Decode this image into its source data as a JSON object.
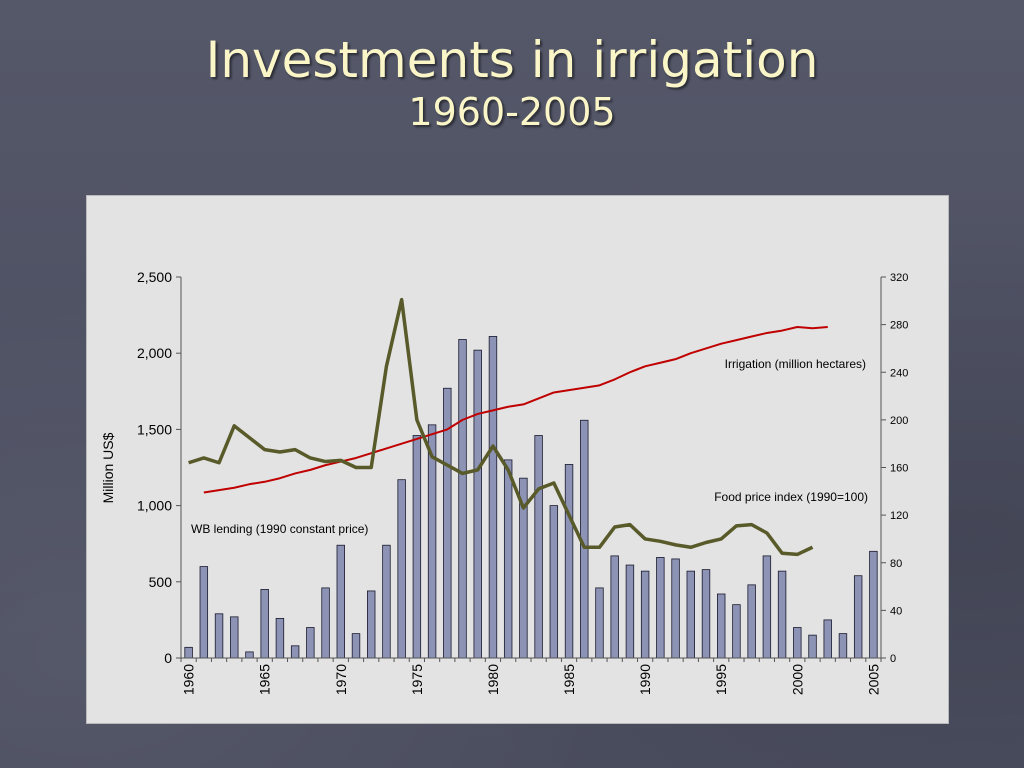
{
  "slide": {
    "title": "Investments in irrigation",
    "subtitle": "1960-2005"
  },
  "chart_data": {
    "type": "bar",
    "title": "Investments in irrigation",
    "subtitle": "1960-2005",
    "ylabel": "Million US$",
    "ylim": [
      0,
      2500
    ],
    "y_ticks": [
      "0",
      "500",
      "1,000",
      "1,500",
      "2,000",
      "2,500"
    ],
    "y2lim": [
      0,
      320
    ],
    "y2_ticks": [
      "0",
      "40",
      "80",
      "120",
      "160",
      "200",
      "240",
      "280",
      "320"
    ],
    "x_tick_labels": [
      "1960",
      "1965",
      "1970",
      "1975",
      "1980",
      "1985",
      "1990",
      "1995",
      "2000",
      "2005"
    ],
    "grid": false,
    "x": [
      1960,
      1961,
      1962,
      1963,
      1964,
      1965,
      1966,
      1967,
      1968,
      1969,
      1970,
      1971,
      1972,
      1973,
      1974,
      1975,
      1976,
      1977,
      1978,
      1979,
      1980,
      1981,
      1982,
      1983,
      1984,
      1985,
      1986,
      1987,
      1988,
      1989,
      1990,
      1991,
      1992,
      1993,
      1994,
      1995,
      1996,
      1997,
      1998,
      1999,
      2000,
      2001,
      2002,
      2003,
      2004,
      2005
    ],
    "series": [
      {
        "name": "WB lending (1990 constant price)",
        "kind": "bar",
        "axis": "left",
        "color": "#8c93b5",
        "values": [
          70,
          600,
          290,
          270,
          40,
          450,
          260,
          80,
          200,
          460,
          740,
          160,
          440,
          740,
          1170,
          1460,
          1530,
          1770,
          2090,
          2020,
          2110,
          1300,
          1180,
          1460,
          1000,
          1270,
          1560,
          460,
          670,
          610,
          570,
          660,
          650,
          570,
          580,
          420,
          350,
          480,
          670,
          570,
          200,
          150,
          250,
          160,
          540,
          700
        ]
      },
      {
        "name": "Irrigation (million hectares)",
        "kind": "line",
        "axis": "right",
        "color": "#c00000",
        "x": [
          1961,
          1962,
          1963,
          1964,
          1965,
          1966,
          1967,
          1968,
          1969,
          1970,
          1971,
          1972,
          1973,
          1974,
          1975,
          1976,
          1977,
          1978,
          1979,
          1980,
          1981,
          1982,
          1983,
          1984,
          1985,
          1986,
          1987,
          1988,
          1989,
          1990,
          1991,
          1992,
          1993,
          1994,
          1995,
          1996,
          1997,
          1998,
          1999,
          2000,
          2001,
          2002
        ],
        "values": [
          139,
          141,
          143,
          146,
          148,
          151,
          155,
          158,
          162,
          165,
          168,
          172,
          176,
          180,
          184,
          188,
          192,
          200,
          205,
          208,
          211,
          213,
          218,
          223,
          225,
          227,
          229,
          234,
          240,
          245,
          248,
          251,
          256,
          260,
          264,
          267,
          270,
          273,
          275,
          278,
          277,
          278
        ]
      },
      {
        "name": "Food price index (1990=100)",
        "kind": "line",
        "axis": "right",
        "color": "#595a2a",
        "x": [
          1960,
          1961,
          1962,
          1963,
          1964,
          1965,
          1966,
          1967,
          1968,
          1969,
          1970,
          1971,
          1972,
          1973,
          1974,
          1975,
          1976,
          1977,
          1978,
          1979,
          1980,
          1981,
          1982,
          1983,
          1984,
          1985,
          1986,
          1987,
          1988,
          1989,
          1990,
          1991,
          1992,
          1993,
          1994,
          1995,
          1996,
          1997,
          1998,
          1999,
          2000,
          2001
        ],
        "values": [
          164,
          168,
          164,
          195,
          185,
          175,
          173,
          175,
          168,
          165,
          166,
          160,
          160,
          245,
          301,
          200,
          169,
          162,
          155,
          158,
          178,
          158,
          126,
          142,
          147,
          120,
          93,
          93,
          110,
          112,
          100,
          98,
          95,
          93,
          97,
          100,
          111,
          112,
          105,
          88,
          87,
          93
        ]
      }
    ],
    "annotations": [
      "Irrigation (million hectares)",
      "Food price index (1990=100)",
      "WB lending (1990 constant price)"
    ]
  }
}
